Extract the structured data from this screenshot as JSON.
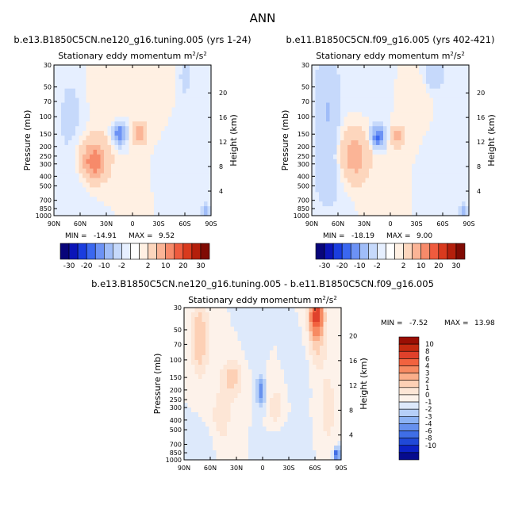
{
  "page_title": "ANN",
  "colors": {
    "background": "#ffffff",
    "positive_light": "#fde0cc",
    "negative_light": "#d6e6fb",
    "positive_strong": "#e0412b",
    "negative_strong": "#2b56e0"
  },
  "chart_data": [
    {
      "type": "heatmap",
      "id": "panel-1",
      "header": "b.e13.B1850C5CN.ne120_g16.tuning.005 (yrs 1-24)",
      "title": "Stationary eddy momentum",
      "units_base": "m",
      "units_sup1": "2",
      "units_mid": "/s",
      "units_sup2": "2",
      "ylabel": "Pressure (mb)",
      "ylabel_right": "Height (km)",
      "x_ticks": [
        "90N",
        "60N",
        "30N",
        "0",
        "30S",
        "60S",
        "90S"
      ],
      "y_ticks": [
        30,
        50,
        70,
        100,
        150,
        200,
        250,
        300,
        400,
        500,
        700,
        850,
        1000
      ],
      "height_ticks": [
        4,
        8,
        12,
        16,
        20
      ],
      "ylim": [
        30,
        1000
      ],
      "xlim": [
        90,
        -90
      ],
      "min_label": "MIN =",
      "min": "-14.91",
      "max_label": "MAX =",
      "max": "9.52",
      "colorbar": {
        "orientation": "horizontal",
        "tick_labels": [
          "-30",
          "-20",
          "-10",
          "-2",
          "2",
          "10",
          "20",
          "30"
        ],
        "colors": [
          "#08057a",
          "#0b14b8",
          "#1a3ddf",
          "#3a67f0",
          "#6c92f5",
          "#a0bdf8",
          "#c6d9fb",
          "#e6efff",
          "#ffffff",
          "#fff0e3",
          "#fdd6bd",
          "#fbb496",
          "#f78a6a",
          "#ef5b3e",
          "#d93a1e",
          "#b41f0c",
          "#800b04"
        ]
      },
      "blobs": [
        {
          "lat": 45,
          "p": 270,
          "w": 18,
          "h": 0.55,
          "v": 10
        },
        {
          "lat": 44,
          "p": 300,
          "w": 10,
          "h": 0.25,
          "v": 5
        },
        {
          "lat": 15,
          "p": 150,
          "w": 8,
          "h": 0.25,
          "v": -14
        },
        {
          "lat": -8,
          "p": 150,
          "w": 8,
          "h": 0.25,
          "v": 9
        },
        {
          "lat": 70,
          "p": 100,
          "w": 18,
          "h": 1.2,
          "v": -3
        },
        {
          "lat": 65,
          "p": 500,
          "w": 22,
          "h": 0.8,
          "v": -2
        },
        {
          "lat": 30,
          "p": 60,
          "w": 25,
          "h": 0.7,
          "v": 2
        },
        {
          "lat": -30,
          "p": 50,
          "w": 15,
          "h": 0.7,
          "v": 2
        },
        {
          "lat": -60,
          "p": 40,
          "w": 8,
          "h": 0.5,
          "v": -3
        },
        {
          "lat": -55,
          "p": 300,
          "w": 15,
          "h": 1.0,
          "v": -2
        },
        {
          "lat": -85,
          "p": 900,
          "w": 5,
          "h": 0.15,
          "v": -8
        },
        {
          "lat": 0,
          "p": 600,
          "w": 10,
          "h": 0.5,
          "v": 2
        }
      ]
    },
    {
      "type": "heatmap",
      "id": "panel-2",
      "header": "b.e11.B1850C5CN.f09_g16.005 (yrs 402-421)",
      "title": "Stationary eddy momentum",
      "units_base": "m",
      "units_sup1": "2",
      "units_mid": "/s",
      "units_sup2": "2",
      "ylabel": "Pressure (mb)",
      "ylabel_right": "Height (km)",
      "x_ticks": [
        "90N",
        "60N",
        "30N",
        "0",
        "30S",
        "60S",
        "90S"
      ],
      "y_ticks": [
        30,
        50,
        70,
        100,
        150,
        200,
        250,
        300,
        400,
        500,
        700,
        850,
        1000
      ],
      "height_ticks": [
        4,
        8,
        12,
        16,
        20
      ],
      "ylim": [
        30,
        1000
      ],
      "xlim": [
        90,
        -90
      ],
      "min_label": "MIN =",
      "min": "-18.19",
      "max_label": "MAX =",
      "max": "9.00",
      "colorbar": {
        "orientation": "horizontal",
        "tick_labels": [
          "-30",
          "-20",
          "-10",
          "-2",
          "2",
          "10",
          "20",
          "30"
        ],
        "colors": [
          "#08057a",
          "#0b14b8",
          "#1a3ddf",
          "#3a67f0",
          "#6c92f5",
          "#a0bdf8",
          "#c6d9fb",
          "#e6efff",
          "#ffffff",
          "#fff0e3",
          "#fdd6bd",
          "#fbb496",
          "#f78a6a",
          "#ef5b3e",
          "#d93a1e",
          "#b41f0c",
          "#800b04"
        ]
      },
      "blobs": [
        {
          "lat": 42,
          "p": 250,
          "w": 18,
          "h": 0.6,
          "v": 9
        },
        {
          "lat": 14,
          "p": 160,
          "w": 8,
          "h": 0.25,
          "v": -16
        },
        {
          "lat": -8,
          "p": 160,
          "w": 8,
          "h": 0.25,
          "v": 8
        },
        {
          "lat": 72,
          "p": 80,
          "w": 14,
          "h": 1.4,
          "v": -6
        },
        {
          "lat": 70,
          "p": 400,
          "w": 20,
          "h": 0.9,
          "v": -3
        },
        {
          "lat": 25,
          "p": 50,
          "w": 20,
          "h": 0.6,
          "v": -2
        },
        {
          "lat": -50,
          "p": 35,
          "w": 12,
          "h": 0.4,
          "v": -6
        },
        {
          "lat": -30,
          "p": 60,
          "w": 16,
          "h": 0.7,
          "v": 2
        },
        {
          "lat": -60,
          "p": 300,
          "w": 15,
          "h": 1.0,
          "v": -2
        },
        {
          "lat": -85,
          "p": 900,
          "w": 5,
          "h": 0.15,
          "v": -8
        },
        {
          "lat": 0,
          "p": 600,
          "w": 10,
          "h": 0.5,
          "v": 2
        }
      ]
    },
    {
      "type": "heatmap",
      "id": "panel-diff",
      "header": "b.e13.B1850C5CN.ne120_g16.tuning.005 - b.e11.B1850C5CN.f09_g16.005",
      "title": "Stationary eddy momentum",
      "units_base": "m",
      "units_sup1": "2",
      "units_mid": "/s",
      "units_sup2": "2",
      "ylabel": "Pressure (mb)",
      "ylabel_right": "Height (km)",
      "x_ticks": [
        "90N",
        "60N",
        "30N",
        "0",
        "30S",
        "60S",
        "90S"
      ],
      "y_ticks": [
        30,
        50,
        70,
        100,
        150,
        200,
        250,
        300,
        400,
        500,
        700,
        850,
        1000
      ],
      "height_ticks": [
        4,
        8,
        12,
        16,
        20
      ],
      "ylim": [
        30,
        1000
      ],
      "xlim": [
        90,
        -90
      ],
      "min_label": "MIN =",
      "min": "-7.52",
      "max_label": "MAX =",
      "max": "13.98",
      "colorbar": {
        "orientation": "vertical",
        "tick_labels": [
          "10",
          "8",
          "6",
          "4",
          "3",
          "2",
          "1",
          "0",
          "-1",
          "-2",
          "-3",
          "-4",
          "-6",
          "-8",
          "-10"
        ],
        "colors": [
          "#9a0f04",
          "#c42a10",
          "#e0412b",
          "#f2623f",
          "#f78a62",
          "#fbae8a",
          "#fdd0b5",
          "#fde6d6",
          "#fdf2ea",
          "#dde9fb",
          "#b6cff8",
          "#8cb2f4",
          "#6690ee",
          "#3f6ee6",
          "#2049d8",
          "#0c22c6",
          "#060b8e"
        ]
      },
      "blobs": [
        {
          "lat": -62,
          "p": 35,
          "w": 7,
          "h": 0.35,
          "v": 8
        },
        {
          "lat": -62,
          "p": 55,
          "w": 10,
          "h": 0.7,
          "v": 3
        },
        {
          "lat": 72,
          "p": 60,
          "w": 10,
          "h": 0.9,
          "v": 3
        },
        {
          "lat": 35,
          "p": 150,
          "w": 12,
          "h": 0.45,
          "v": 2.5
        },
        {
          "lat": 2,
          "p": 210,
          "w": 5,
          "h": 0.35,
          "v": -4
        },
        {
          "lat": 48,
          "p": 400,
          "w": 15,
          "h": 0.8,
          "v": 1.5
        },
        {
          "lat": 70,
          "p": 700,
          "w": 20,
          "h": 0.5,
          "v": -1
        },
        {
          "lat": -25,
          "p": 700,
          "w": 20,
          "h": 0.5,
          "v": -1
        },
        {
          "lat": -15,
          "p": 300,
          "w": 10,
          "h": 0.6,
          "v": 1.5
        },
        {
          "lat": -40,
          "p": 120,
          "w": 12,
          "h": 0.6,
          "v": -1
        },
        {
          "lat": 10,
          "p": 50,
          "w": 10,
          "h": 0.6,
          "v": -1
        },
        {
          "lat": -85,
          "p": 880,
          "w": 4,
          "h": 0.15,
          "v": -5
        },
        {
          "lat": -75,
          "p": 300,
          "w": 10,
          "h": 1.0,
          "v": 1.5
        }
      ]
    }
  ]
}
